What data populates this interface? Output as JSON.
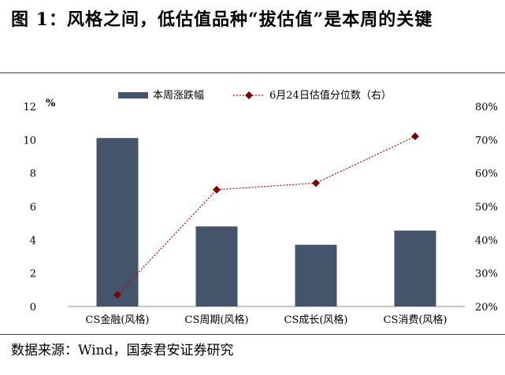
{
  "figure": {
    "title": "图 1：风格之间，低估值品种“拔估值”是本周的关键",
    "source": "数据来源：Wind，国泰君安证券研究"
  },
  "chart_data": {
    "type": "bar",
    "categories": [
      "CS金融(风格)",
      "CS周期(风格)",
      "CS成长(风格)",
      "CS消费(风格)"
    ],
    "series": [
      {
        "name": "本周涨跌幅",
        "type": "bar",
        "axis": "left",
        "values": [
          10.1,
          4.8,
          3.7,
          4.55
        ],
        "color": "#44546a"
      },
      {
        "name": "6月24日估值分位数（右）",
        "type": "line",
        "axis": "right",
        "values": [
          0.235,
          0.55,
          0.57,
          0.71
        ],
        "color": "#c00000",
        "marker_color": "#7b0000"
      }
    ],
    "left_axis": {
      "unit": "%",
      "ylim": [
        0,
        12
      ],
      "ticks": [
        "0",
        "2",
        "4",
        "6",
        "8",
        "10",
        "12"
      ]
    },
    "right_axis": {
      "ylim": [
        0.2,
        0.8
      ],
      "ticks": [
        "20%",
        "30%",
        "40%",
        "50%",
        "60%",
        "70%",
        "80%"
      ]
    },
    "legend": "top-center",
    "grid": false
  }
}
